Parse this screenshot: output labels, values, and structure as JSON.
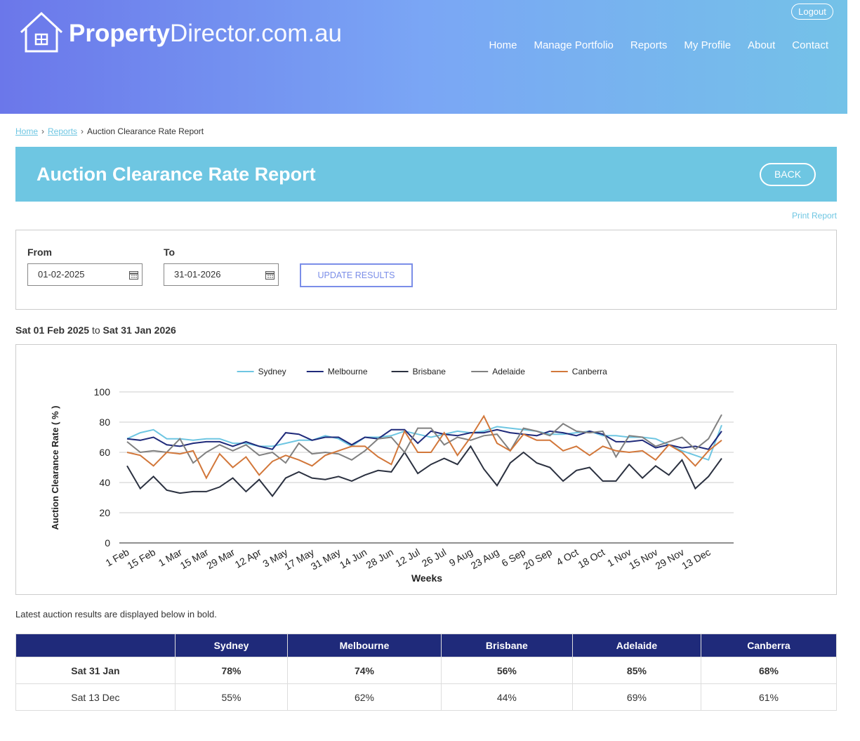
{
  "header": {
    "logo_bold": "Property",
    "logo_light": "Director.com.au",
    "logout": "Logout",
    "nav": [
      "Home",
      "Manage Portfolio",
      "Reports",
      "My Profile",
      "About",
      "Contact"
    ]
  },
  "breadcrumb": [
    "Home",
    "Reports",
    "Auction Clearance Rate Report"
  ],
  "report": {
    "title": "Auction Clearance Rate Report",
    "back": "BACK",
    "print": "Print Report"
  },
  "form": {
    "from_label": "From",
    "from_value": "01-02-2025",
    "to_label": "To",
    "to_value": "31-01-2026",
    "button": "UPDATE RESULTS"
  },
  "range": {
    "start": "Sat 01 Feb 2025",
    "joiner": "to",
    "end": "Sat 31 Jan 2026"
  },
  "chart_data": {
    "type": "line",
    "x_label": "Weeks",
    "y_label": "Auction Clearance Rate ( % )",
    "categories": [
      "1 Feb",
      null,
      "15 Feb",
      null,
      "1 Mar",
      null,
      "15 Mar",
      null,
      "29 Mar",
      null,
      "12 Apr",
      null,
      "3 May",
      null,
      "17 May",
      null,
      "31 May",
      null,
      "14 Jun",
      null,
      "28 Jun",
      null,
      "12 Jul",
      null,
      "26 Jul",
      null,
      "9 Aug",
      null,
      "23 Aug",
      null,
      "6 Sep",
      null,
      "20 Sep",
      null,
      "4 Oct",
      null,
      "18 Oct",
      null,
      "1 Nov",
      null,
      "15 Nov",
      null,
      "29 Nov",
      null,
      "13 Dec",
      null
    ],
    "ylim": [
      0,
      100
    ],
    "yticks": [
      0,
      20,
      40,
      60,
      80,
      100
    ],
    "grid": true,
    "series": [
      {
        "name": "Sydney",
        "color": "#6ec6e2",
        "values": [
          69,
          73,
          75,
          69,
          69,
          68,
          69,
          69,
          66,
          66,
          64,
          64,
          66,
          68,
          68,
          71,
          69,
          64,
          70,
          70,
          71,
          74,
          72,
          70,
          72,
          74,
          73,
          74,
          77,
          76,
          75,
          74,
          72,
          72,
          73,
          74,
          71,
          71,
          70,
          70,
          69,
          65,
          61,
          58,
          55,
          78
        ]
      },
      {
        "name": "Melbourne",
        "color": "#1f2a7a",
        "values": [
          69,
          68,
          70,
          65,
          64,
          66,
          67,
          67,
          64,
          67,
          64,
          62,
          73,
          72,
          68,
          70,
          70,
          65,
          70,
          69,
          75,
          75,
          66,
          74,
          72,
          71,
          73,
          73,
          75,
          73,
          72,
          71,
          74,
          73,
          71,
          74,
          72,
          67,
          67,
          68,
          63,
          65,
          63,
          64,
          62,
          74
        ]
      },
      {
        "name": "Brisbane",
        "color": "#2b3140",
        "values": [
          51,
          36,
          44,
          35,
          33,
          34,
          34,
          37,
          43,
          34,
          42,
          31,
          43,
          47,
          43,
          42,
          44,
          41,
          45,
          48,
          47,
          60,
          46,
          52,
          56,
          52,
          64,
          49,
          38,
          53,
          60,
          53,
          50,
          41,
          48,
          50,
          41,
          41,
          52,
          43,
          51,
          45,
          55,
          36,
          44,
          56
        ]
      },
      {
        "name": "Adelaide",
        "color": "#808080",
        "values": [
          67,
          60,
          61,
          60,
          69,
          53,
          60,
          65,
          61,
          65,
          58,
          60,
          53,
          66,
          59,
          60,
          59,
          55,
          61,
          69,
          70,
          60,
          76,
          76,
          65,
          70,
          68,
          71,
          72,
          61,
          76,
          74,
          71,
          79,
          74,
          73,
          74,
          57,
          71,
          70,
          64,
          67,
          70,
          62,
          69,
          85
        ]
      },
      {
        "name": "Canberra",
        "color": "#d2773a",
        "values": [
          60,
          58,
          51,
          60,
          59,
          61,
          43,
          59,
          50,
          57,
          45,
          54,
          58,
          55,
          51,
          58,
          61,
          64,
          64,
          57,
          52,
          74,
          60,
          60,
          73,
          58,
          70,
          84,
          66,
          61,
          72,
          68,
          68,
          61,
          64,
          58,
          64,
          61,
          60,
          61,
          55,
          65,
          60,
          51,
          61,
          68
        ]
      }
    ]
  },
  "note": "Latest auction results are displayed below in bold.",
  "table": {
    "columns": [
      "Sydney",
      "Melbourne",
      "Brisbane",
      "Adelaide",
      "Canberra"
    ],
    "rows": [
      {
        "label": "Sat 31 Jan",
        "bold": true,
        "cells": [
          "78%",
          "74%",
          "56%",
          "85%",
          "68%"
        ]
      },
      {
        "label": "Sat 13 Dec",
        "bold": false,
        "cells": [
          "55%",
          "62%",
          "44%",
          "69%",
          "61%"
        ]
      }
    ]
  }
}
